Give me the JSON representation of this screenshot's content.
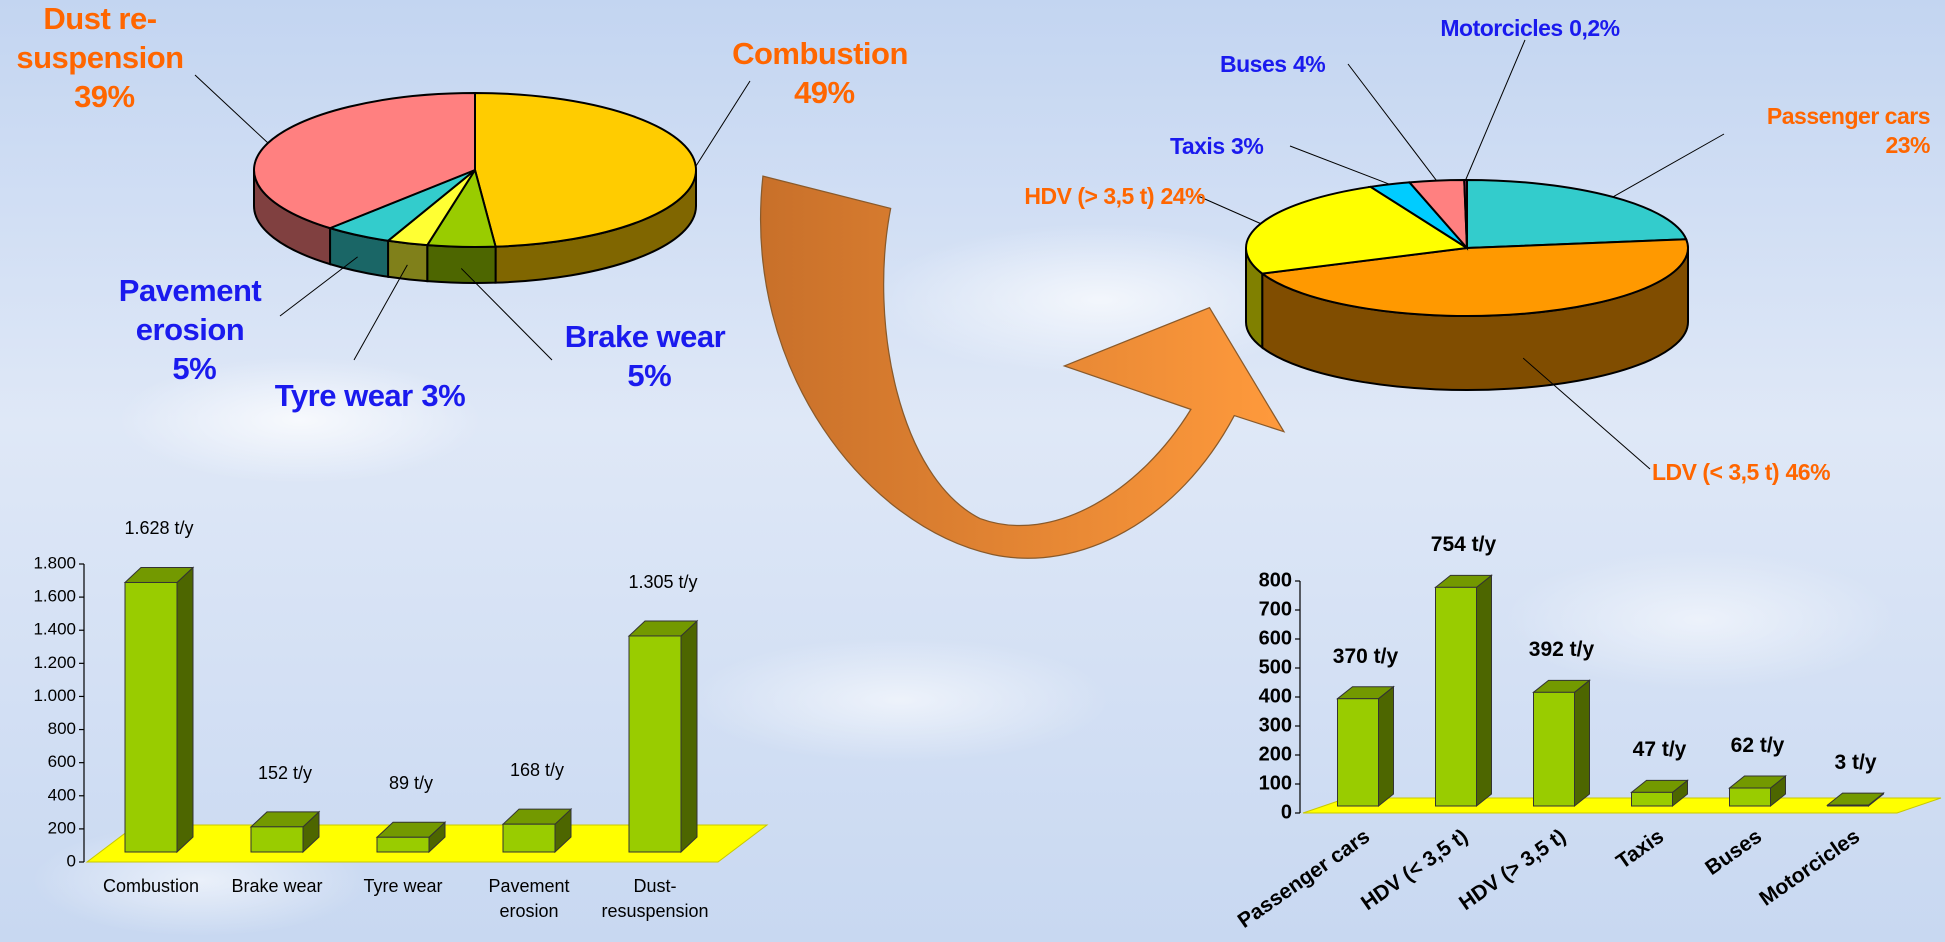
{
  "chart_data": [
    {
      "type": "pie",
      "categories": [
        "Combustion",
        "Brake wear",
        "Tyre wear",
        "Pavement erosion",
        "Dust re-suspension"
      ],
      "values": [
        49,
        5,
        3,
        5,
        39
      ],
      "value_labels": [
        "49%",
        "5%",
        "3%",
        "5%",
        "39%"
      ],
      "colors": [
        "#ffcc00",
        "#99cc00",
        "#ffff33",
        "#33cccc",
        "#ff8080"
      ],
      "label_colors": [
        "#ff6600",
        "#1a1aee",
        "#1a1aee",
        "#1a1aee",
        "#ff6600"
      ]
    },
    {
      "type": "pie",
      "categories": [
        "Passenger cars",
        "LDV (< 3,5 t)",
        "HDV (> 3,5 t)",
        "Taxis",
        "Buses",
        "Motorcicles"
      ],
      "values": [
        23,
        46,
        24,
        3,
        4,
        0.2
      ],
      "value_labels": [
        "23%",
        "46%",
        "24%",
        "3%",
        "4%",
        "0,2%"
      ],
      "colors": [
        "#33cccc",
        "#ff9900",
        "#ffff00",
        "#00ccff",
        "#ff8080",
        "#993366"
      ],
      "label_colors": [
        "#ff6600",
        "#ff6600",
        "#ff6600",
        "#1a1aee",
        "#1a1aee",
        "#1a1aee"
      ]
    },
    {
      "type": "bar",
      "categories": [
        "Combustion",
        "Brake wear",
        "Tyre wear",
        "Pavement erosion",
        "Dust-resuspension"
      ],
      "values": [
        1628,
        152,
        89,
        168,
        1305
      ],
      "value_labels": [
        "1.628 t/y",
        "152 t/y",
        "89 t/y",
        "168 t/y",
        "1.305 t/y"
      ],
      "color": "#99cc00",
      "floor_color": "#ffff00",
      "ylim": [
        0,
        1800
      ],
      "yticks": [
        0,
        200,
        400,
        600,
        800,
        {
          "value": 1000,
          "label": "1.000"
        },
        {
          "value": 1200,
          "label": "1.200"
        },
        {
          "value": 1400,
          "label": "1.400"
        },
        {
          "value": 1600,
          "label": "1.600"
        },
        {
          "value": 1800,
          "label": "1.800"
        }
      ]
    },
    {
      "type": "bar",
      "categories": [
        "Passenger cars",
        "HDV (< 3,5 t)",
        "HDV (> 3,5 t)",
        "Taxis",
        "Buses",
        "Motorcicles"
      ],
      "values": [
        370,
        754,
        392,
        47,
        62,
        3
      ],
      "value_labels": [
        "370 t/y",
        "754 t/y",
        "392 t/y",
        "47 t/y",
        "62 t/y",
        "3 t/y"
      ],
      "color": "#99cc00",
      "floor_color": "#ffff00",
      "ylim": [
        0,
        800
      ],
      "yticks": [
        0,
        100,
        200,
        300,
        400,
        500,
        600,
        700,
        800
      ]
    }
  ]
}
